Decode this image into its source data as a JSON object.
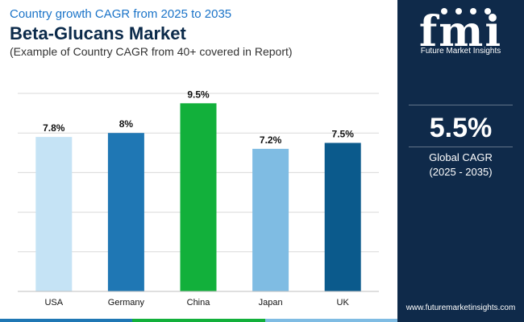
{
  "header": {
    "subtitle": "Country growth CAGR from 2025 to 2035",
    "title": "Beta-Glucans Market",
    "caption": "(Example of Country CAGR from 40+ covered in Report)"
  },
  "chart_data": {
    "type": "bar",
    "categories": [
      "USA",
      "Germany",
      "China",
      "Japan",
      "UK"
    ],
    "values": [
      7.8,
      8,
      9.5,
      7.2,
      7.5
    ],
    "value_labels": [
      "7.8%",
      "8%",
      "9.5%",
      "7.2%",
      "7.5%"
    ],
    "colors": [
      "#c5e3f5",
      "#1f77b4",
      "#12b03b",
      "#7fbce3",
      "#0b5a8c"
    ],
    "ylim": [
      0,
      10
    ],
    "grid": true,
    "title": "",
    "xlabel": "",
    "ylabel": ""
  },
  "sidebar": {
    "logo_mark": "fmi",
    "logo_text": "Future Market Insights",
    "kpi_value": "5.5%",
    "kpi_label": "Global CAGR",
    "kpi_range": "(2025 - 2035)",
    "website": "www.futuremarketinsights.com",
    "background": "#0f2a4a"
  },
  "footer": {
    "accent_colors": [
      "#1f77b4",
      "#12b03b",
      "#7fbce3"
    ]
  }
}
